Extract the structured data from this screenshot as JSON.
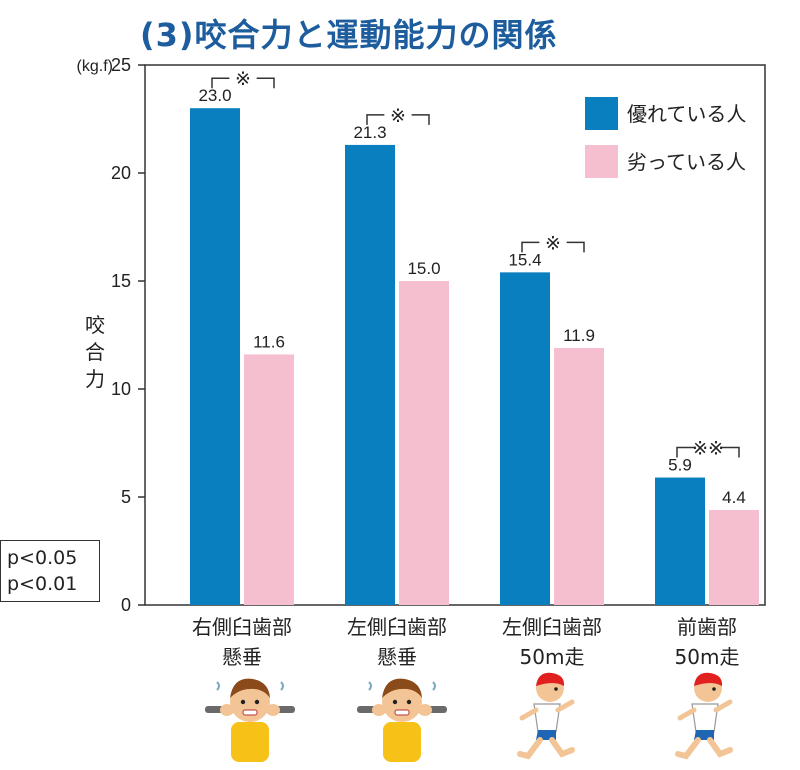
{
  "page_title": "(3)咬合力と運動能力の関係",
  "notes": [
    "p<0.05",
    "p<0.01"
  ],
  "chart_data": {
    "type": "bar",
    "unit": "(kg.f)",
    "ylabel": "咬合力",
    "ylim": [
      0,
      25
    ],
    "yticks": [
      0,
      5,
      10,
      15,
      20,
      25
    ],
    "grid": false,
    "legend_position": "top-right",
    "categories": [
      {
        "line1": "右側臼歯部",
        "line2": "懸垂"
      },
      {
        "line1": "左側臼歯部",
        "line2": "懸垂"
      },
      {
        "line1": "左側臼歯部",
        "line2": "50m走"
      },
      {
        "line1": "前歯部",
        "line2": "50m走"
      }
    ],
    "series": [
      {
        "name": "優れている人",
        "color": "#0a7fbf",
        "values": [
          23.0,
          21.3,
          15.4,
          5.9
        ],
        "labels": [
          "23.0",
          "21.3",
          "15.4",
          "5.9"
        ]
      },
      {
        "name": "劣っている人",
        "color": "#f5bfd0",
        "values": [
          11.6,
          15.0,
          11.9,
          4.4
        ],
        "labels": [
          "11.6",
          "15.0",
          "11.9",
          "4.4"
        ]
      }
    ],
    "significance": [
      "※",
      "※",
      "※",
      "※※"
    ]
  },
  "icons": [
    "boy-pullup-icon",
    "boy-pullup-icon",
    "boy-running-icon",
    "boy-running-icon"
  ]
}
